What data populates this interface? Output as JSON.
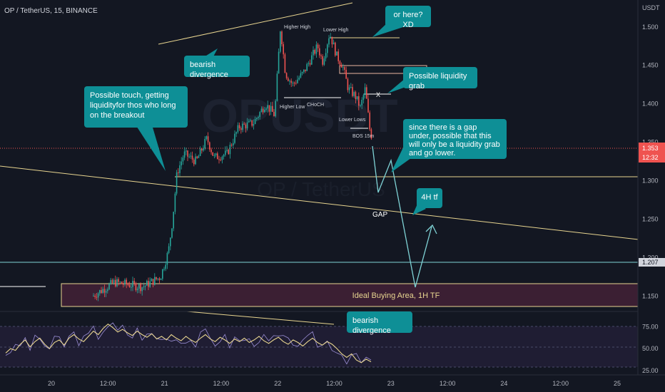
{
  "header": {
    "symbol_line": "OP / TetherUS, 15, BINANCE"
  },
  "watermark": {
    "ticker": "OPUSDT",
    "name": "OP / TetherUS"
  },
  "colors": {
    "up": "#26a69a",
    "down": "#ef5350",
    "callout": "#0e8f96",
    "yellow": "#e8d590",
    "zone": "#3b1f33"
  },
  "chart_data": [
    {
      "type": "candlestick",
      "title": "",
      "ylabel": "USDT",
      "ylim": [
        1.13,
        1.535
      ],
      "yticks": [
        "1.500",
        "1.450",
        "1.400",
        "1.350",
        "1.300",
        "1.250",
        "1.200",
        "1.150"
      ],
      "xticks": [
        "20",
        "12:00",
        "21",
        "12:00",
        "22",
        "12:00",
        "23",
        "12:00",
        "24",
        "12:00",
        "25"
      ],
      "last_price": "1.353",
      "countdown": "12:32",
      "marked_level": "1.207",
      "annotations": {
        "higher_high": "Higher High",
        "lower_high": "Lower High",
        "higher_low": "Higher Low",
        "choch": "CHoCH",
        "lower_lows": "Lower Lows",
        "bos": "BOS 15m",
        "x_mark": "X",
        "gap": "GAP",
        "zone_label": "Ideal Buying Area, 1H TF"
      }
    },
    {
      "type": "line",
      "title": "",
      "ylabel": "",
      "yticks": [
        "75.00",
        "50.00",
        "25.00"
      ],
      "ylim": [
        20,
        90
      ],
      "series_desc": "RSI oscillator",
      "values": [
        45,
        50,
        48,
        55,
        60,
        52,
        58,
        62,
        55,
        50,
        57,
        60,
        54,
        62,
        66,
        61,
        58,
        64,
        70,
        66,
        73,
        78,
        74,
        69,
        72,
        68,
        65,
        70,
        66,
        63,
        67,
        61,
        64,
        60,
        66,
        62,
        59,
        64,
        60,
        57,
        62,
        66,
        61,
        58,
        63,
        60,
        56,
        61,
        58,
        62,
        57,
        60,
        64,
        59,
        56,
        60,
        63,
        58,
        55,
        60,
        57,
        53,
        58,
        62,
        57,
        54,
        58,
        55,
        50,
        44,
        40,
        44,
        37,
        34,
        38,
        35
      ]
    }
  ],
  "callouts": {
    "divergence_top": "bearish divergence",
    "touch": "Possible touch, getting liquidityfor thos who long on the breakout",
    "or_here": "or here? XD",
    "liquidity_grab": "Possible liquidity grab",
    "gap_note": "since there is a gap under, possible that this will only be a liquidity grab and go lower.",
    "tf4h": "4H tf",
    "divergence_bottom": "bearish divergence"
  }
}
